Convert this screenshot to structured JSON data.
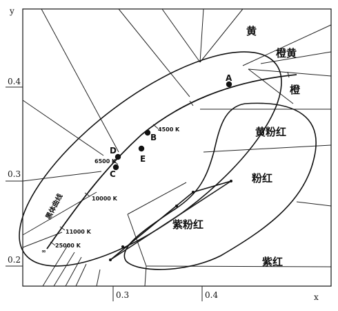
{
  "axes": {
    "x_axis_label": "x",
    "y_axis_label": "y",
    "x_ticks": [
      "0.3",
      "0.4"
    ],
    "y_ticks": [
      "0.4",
      "0.3",
      "0.2"
    ]
  },
  "regions": {
    "yellow": "黄",
    "orange_yellow": "橙黄",
    "orange": "橙",
    "yellow_pink": "黄粉红",
    "pink": "粉红",
    "purple_pink": "紫粉红",
    "purple_red": "紫红"
  },
  "points": {
    "a": "A",
    "b": "B",
    "c": "C",
    "d": "D",
    "e": "E"
  },
  "locus": {
    "label": "黑体曲线",
    "infinity": "∞",
    "temps": {
      "t4500": "4500 K",
      "t6500": "6500 K",
      "t10000": "10000 K",
      "t11000": "11000 K",
      "t25000": "25000 K"
    }
  }
}
